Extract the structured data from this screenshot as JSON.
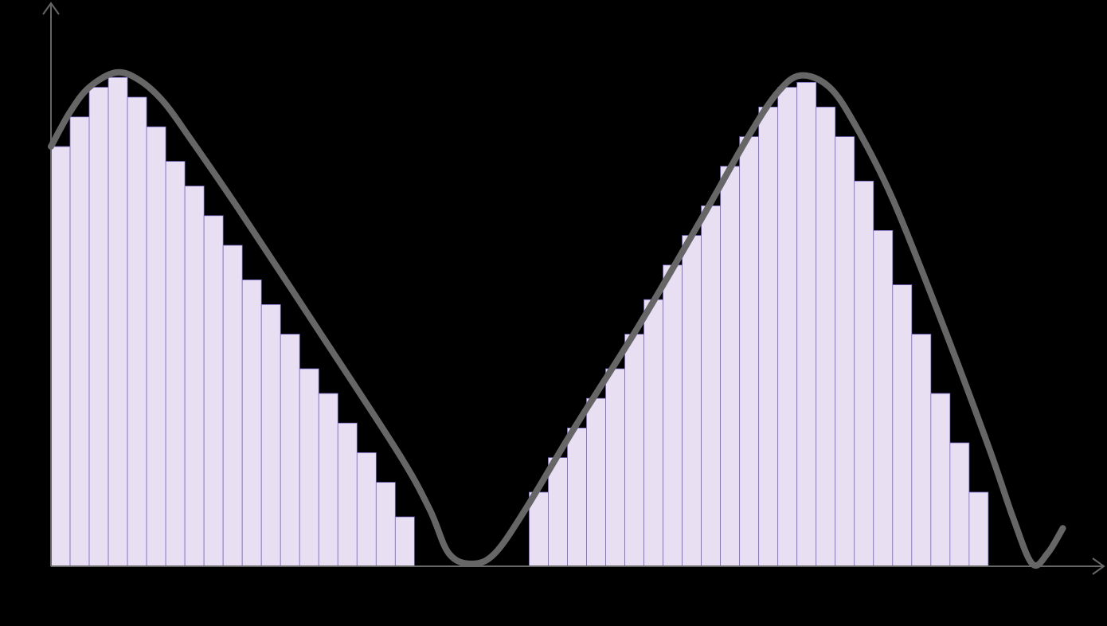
{
  "chart_data": [
    {
      "type": "histogram",
      "bins": [
        0,
        1,
        2,
        3,
        4,
        5,
        6,
        7,
        8,
        9,
        10,
        11,
        12,
        13,
        14,
        15,
        16,
        17,
        18,
        19,
        20,
        21,
        22,
        23,
        24,
        25,
        26,
        27,
        28,
        29,
        30,
        31,
        32,
        33,
        34,
        35,
        36,
        37,
        38,
        39,
        40,
        41,
        42,
        43,
        44,
        45,
        46,
        47,
        48,
        49
      ],
      "values": [
        85,
        91,
        97,
        99,
        95,
        89,
        82,
        77,
        71,
        65,
        58,
        53,
        47,
        40,
        35,
        29,
        23,
        17,
        10,
        null,
        null,
        null,
        null,
        null,
        null,
        15,
        22,
        28,
        34,
        40,
        47,
        54,
        61,
        67,
        73,
        81,
        87,
        93,
        97,
        98,
        93,
        87,
        78,
        68,
        57,
        47,
        35,
        25,
        15
      ],
      "color": "#e8e0f2",
      "edge_color": "#7b68c8",
      "xlim": [
        0,
        55
      ],
      "ylim": [
        0,
        100
      ]
    },
    {
      "type": "line",
      "x": [
        0,
        1,
        2,
        3.4,
        4.6,
        5.9,
        7.3,
        9.8,
        14,
        18.2,
        19.8,
        20.8,
        22,
        23.2,
        24.8,
        27.3,
        30.7,
        34,
        36.5,
        38,
        39.2,
        40.7,
        42.1,
        44,
        46.5,
        49,
        50.3,
        51.3,
        52.1,
        52.9
      ],
      "values": [
        85,
        92,
        97,
        100,
        98.5,
        94,
        86.5,
        72.4,
        47.7,
        22.7,
        11.5,
        2.6,
        0.5,
        2.6,
        11.5,
        27.6,
        48.5,
        70.3,
        87.3,
        96,
        99.4,
        97,
        89,
        74.4,
        50.2,
        24.4,
        9.8,
        0.5,
        2.6,
        7.7
      ],
      "color": "#666666",
      "xlim": [
        0,
        55
      ],
      "ylim": [
        0,
        100
      ]
    }
  ]
}
